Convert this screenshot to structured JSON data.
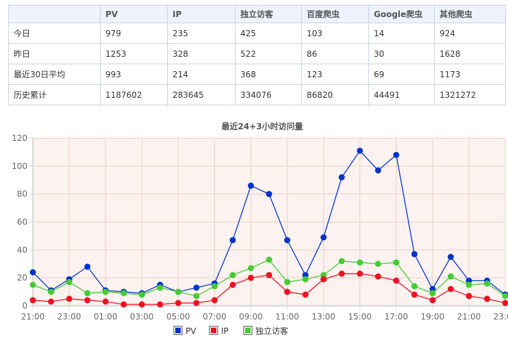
{
  "table": {
    "headers": [
      "",
      "PV",
      "IP",
      "独立访客",
      "百度爬虫",
      "Google爬虫",
      "其他爬虫"
    ],
    "rows": [
      {
        "label": "今日",
        "values": [
          "979",
          "235",
          "425",
          "103",
          "14",
          "924"
        ]
      },
      {
        "label": "昨日",
        "values": [
          "1253",
          "328",
          "522",
          "86",
          "30",
          "1628"
        ]
      },
      {
        "label": "最近30日平均",
        "values": [
          "993",
          "214",
          "368",
          "123",
          "69",
          "1173"
        ]
      },
      {
        "label": "历史累计",
        "values": [
          "1187602",
          "283645",
          "334076",
          "86820",
          "44491",
          "1321272"
        ]
      }
    ]
  },
  "chart_data": {
    "type": "line",
    "title": "最近24+3小时访问量",
    "xlabel": "",
    "ylabel": "",
    "ylim": [
      0,
      120
    ],
    "yticks": [
      0,
      20,
      40,
      60,
      80,
      100,
      120
    ],
    "grid": true,
    "legend_position": "bottom",
    "x": [
      "21:00",
      "22:00",
      "23:00",
      "00:00",
      "01:00",
      "02:00",
      "03:00",
      "04:00",
      "05:00",
      "06:00",
      "07:00",
      "08:00",
      "09:00",
      "10:00",
      "11:00",
      "12:00",
      "13:00",
      "14:00",
      "15:00",
      "16:00",
      "17:00",
      "18:00",
      "19:00",
      "20:00",
      "21:00",
      "22:00",
      "23:00"
    ],
    "xtick_labels": [
      "21:00",
      "23:00",
      "01:00",
      "03:00",
      "05:00",
      "07:00",
      "09:00",
      "11:00",
      "13:00",
      "15:00",
      "17:00",
      "19:00",
      "21:00",
      "23:00"
    ],
    "series": [
      {
        "name": "PV",
        "color": "#0033cc",
        "values": [
          24,
          11,
          19,
          28,
          11,
          10,
          9,
          15,
          10,
          13,
          16,
          47,
          86,
          80,
          47,
          22,
          49,
          92,
          111,
          97,
          108,
          37,
          12,
          35,
          18,
          18,
          8
        ]
      },
      {
        "name": "IP",
        "color": "#ee1122",
        "values": [
          4,
          3,
          5,
          4,
          3,
          1,
          1,
          1,
          2,
          2,
          4,
          15,
          20,
          22,
          10,
          8,
          19,
          23,
          23,
          21,
          18,
          8,
          4,
          12,
          7,
          5,
          2
        ]
      },
      {
        "name": "独立访客",
        "color": "#44cc33",
        "values": [
          15,
          10,
          17,
          9,
          10,
          9,
          8,
          13,
          10,
          7,
          14,
          22,
          27,
          33,
          17,
          19,
          22,
          32,
          31,
          30,
          31,
          14,
          9,
          21,
          15,
          16,
          7
        ]
      }
    ]
  }
}
